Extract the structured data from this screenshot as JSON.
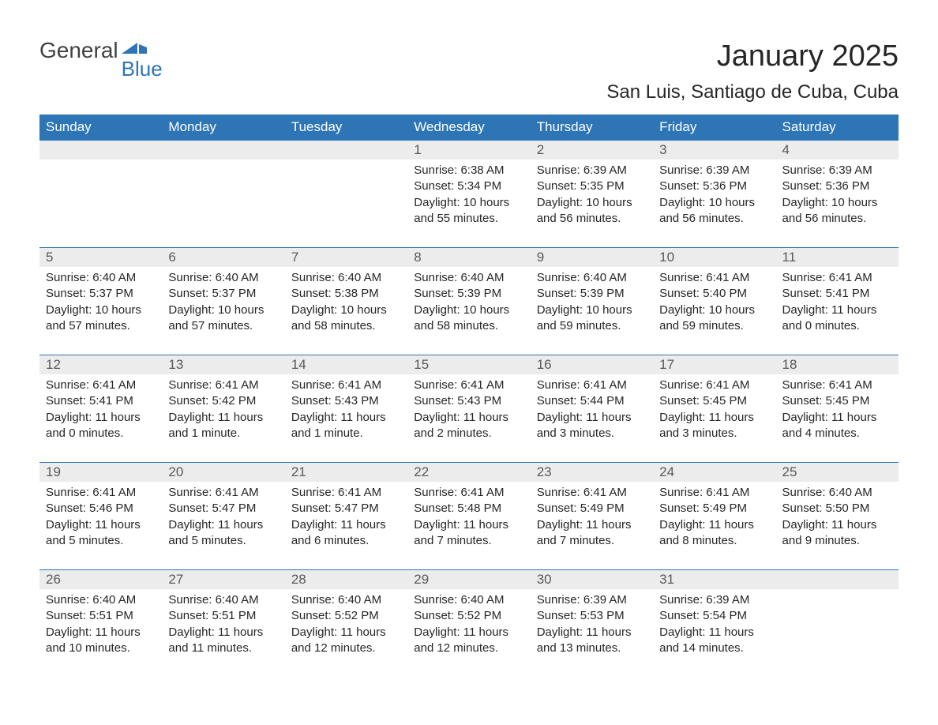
{
  "logo": {
    "text1": "General",
    "text2": "Blue",
    "brand_color": "#2e75b6"
  },
  "title": "January 2025",
  "location": "San Luis, Santiago de Cuba, Cuba",
  "colors": {
    "header_bg": "#2e75b6",
    "header_text": "#ffffff",
    "daynum_bg": "#ececec",
    "daynum_text": "#595959",
    "body_text": "#262626",
    "week_border": "#2e75b6",
    "page_bg": "#ffffff"
  },
  "typography": {
    "title_fontsize": 38,
    "location_fontsize": 24,
    "weekday_fontsize": 17,
    "daynum_fontsize": 17,
    "body_fontsize": 15
  },
  "weekdays": [
    "Sunday",
    "Monday",
    "Tuesday",
    "Wednesday",
    "Thursday",
    "Friday",
    "Saturday"
  ],
  "weeks": [
    [
      {
        "empty": true
      },
      {
        "empty": true
      },
      {
        "empty": true
      },
      {
        "day": "1",
        "sunrise": "Sunrise: 6:38 AM",
        "sunset": "Sunset: 5:34 PM",
        "daylight1": "Daylight: 10 hours",
        "daylight2": "and 55 minutes."
      },
      {
        "day": "2",
        "sunrise": "Sunrise: 6:39 AM",
        "sunset": "Sunset: 5:35 PM",
        "daylight1": "Daylight: 10 hours",
        "daylight2": "and 56 minutes."
      },
      {
        "day": "3",
        "sunrise": "Sunrise: 6:39 AM",
        "sunset": "Sunset: 5:36 PM",
        "daylight1": "Daylight: 10 hours",
        "daylight2": "and 56 minutes."
      },
      {
        "day": "4",
        "sunrise": "Sunrise: 6:39 AM",
        "sunset": "Sunset: 5:36 PM",
        "daylight1": "Daylight: 10 hours",
        "daylight2": "and 56 minutes."
      }
    ],
    [
      {
        "day": "5",
        "sunrise": "Sunrise: 6:40 AM",
        "sunset": "Sunset: 5:37 PM",
        "daylight1": "Daylight: 10 hours",
        "daylight2": "and 57 minutes."
      },
      {
        "day": "6",
        "sunrise": "Sunrise: 6:40 AM",
        "sunset": "Sunset: 5:37 PM",
        "daylight1": "Daylight: 10 hours",
        "daylight2": "and 57 minutes."
      },
      {
        "day": "7",
        "sunrise": "Sunrise: 6:40 AM",
        "sunset": "Sunset: 5:38 PM",
        "daylight1": "Daylight: 10 hours",
        "daylight2": "and 58 minutes."
      },
      {
        "day": "8",
        "sunrise": "Sunrise: 6:40 AM",
        "sunset": "Sunset: 5:39 PM",
        "daylight1": "Daylight: 10 hours",
        "daylight2": "and 58 minutes."
      },
      {
        "day": "9",
        "sunrise": "Sunrise: 6:40 AM",
        "sunset": "Sunset: 5:39 PM",
        "daylight1": "Daylight: 10 hours",
        "daylight2": "and 59 minutes."
      },
      {
        "day": "10",
        "sunrise": "Sunrise: 6:41 AM",
        "sunset": "Sunset: 5:40 PM",
        "daylight1": "Daylight: 10 hours",
        "daylight2": "and 59 minutes."
      },
      {
        "day": "11",
        "sunrise": "Sunrise: 6:41 AM",
        "sunset": "Sunset: 5:41 PM",
        "daylight1": "Daylight: 11 hours",
        "daylight2": "and 0 minutes."
      }
    ],
    [
      {
        "day": "12",
        "sunrise": "Sunrise: 6:41 AM",
        "sunset": "Sunset: 5:41 PM",
        "daylight1": "Daylight: 11 hours",
        "daylight2": "and 0 minutes."
      },
      {
        "day": "13",
        "sunrise": "Sunrise: 6:41 AM",
        "sunset": "Sunset: 5:42 PM",
        "daylight1": "Daylight: 11 hours",
        "daylight2": "and 1 minute."
      },
      {
        "day": "14",
        "sunrise": "Sunrise: 6:41 AM",
        "sunset": "Sunset: 5:43 PM",
        "daylight1": "Daylight: 11 hours",
        "daylight2": "and 1 minute."
      },
      {
        "day": "15",
        "sunrise": "Sunrise: 6:41 AM",
        "sunset": "Sunset: 5:43 PM",
        "daylight1": "Daylight: 11 hours",
        "daylight2": "and 2 minutes."
      },
      {
        "day": "16",
        "sunrise": "Sunrise: 6:41 AM",
        "sunset": "Sunset: 5:44 PM",
        "daylight1": "Daylight: 11 hours",
        "daylight2": "and 3 minutes."
      },
      {
        "day": "17",
        "sunrise": "Sunrise: 6:41 AM",
        "sunset": "Sunset: 5:45 PM",
        "daylight1": "Daylight: 11 hours",
        "daylight2": "and 3 minutes."
      },
      {
        "day": "18",
        "sunrise": "Sunrise: 6:41 AM",
        "sunset": "Sunset: 5:45 PM",
        "daylight1": "Daylight: 11 hours",
        "daylight2": "and 4 minutes."
      }
    ],
    [
      {
        "day": "19",
        "sunrise": "Sunrise: 6:41 AM",
        "sunset": "Sunset: 5:46 PM",
        "daylight1": "Daylight: 11 hours",
        "daylight2": "and 5 minutes."
      },
      {
        "day": "20",
        "sunrise": "Sunrise: 6:41 AM",
        "sunset": "Sunset: 5:47 PM",
        "daylight1": "Daylight: 11 hours",
        "daylight2": "and 5 minutes."
      },
      {
        "day": "21",
        "sunrise": "Sunrise: 6:41 AM",
        "sunset": "Sunset: 5:47 PM",
        "daylight1": "Daylight: 11 hours",
        "daylight2": "and 6 minutes."
      },
      {
        "day": "22",
        "sunrise": "Sunrise: 6:41 AM",
        "sunset": "Sunset: 5:48 PM",
        "daylight1": "Daylight: 11 hours",
        "daylight2": "and 7 minutes."
      },
      {
        "day": "23",
        "sunrise": "Sunrise: 6:41 AM",
        "sunset": "Sunset: 5:49 PM",
        "daylight1": "Daylight: 11 hours",
        "daylight2": "and 7 minutes."
      },
      {
        "day": "24",
        "sunrise": "Sunrise: 6:41 AM",
        "sunset": "Sunset: 5:49 PM",
        "daylight1": "Daylight: 11 hours",
        "daylight2": "and 8 minutes."
      },
      {
        "day": "25",
        "sunrise": "Sunrise: 6:40 AM",
        "sunset": "Sunset: 5:50 PM",
        "daylight1": "Daylight: 11 hours",
        "daylight2": "and 9 minutes."
      }
    ],
    [
      {
        "day": "26",
        "sunrise": "Sunrise: 6:40 AM",
        "sunset": "Sunset: 5:51 PM",
        "daylight1": "Daylight: 11 hours",
        "daylight2": "and 10 minutes."
      },
      {
        "day": "27",
        "sunrise": "Sunrise: 6:40 AM",
        "sunset": "Sunset: 5:51 PM",
        "daylight1": "Daylight: 11 hours",
        "daylight2": "and 11 minutes."
      },
      {
        "day": "28",
        "sunrise": "Sunrise: 6:40 AM",
        "sunset": "Sunset: 5:52 PM",
        "daylight1": "Daylight: 11 hours",
        "daylight2": "and 12 minutes."
      },
      {
        "day": "29",
        "sunrise": "Sunrise: 6:40 AM",
        "sunset": "Sunset: 5:52 PM",
        "daylight1": "Daylight: 11 hours",
        "daylight2": "and 12 minutes."
      },
      {
        "day": "30",
        "sunrise": "Sunrise: 6:39 AM",
        "sunset": "Sunset: 5:53 PM",
        "daylight1": "Daylight: 11 hours",
        "daylight2": "and 13 minutes."
      },
      {
        "day": "31",
        "sunrise": "Sunrise: 6:39 AM",
        "sunset": "Sunset: 5:54 PM",
        "daylight1": "Daylight: 11 hours",
        "daylight2": "and 14 minutes."
      },
      {
        "empty": true
      }
    ]
  ]
}
